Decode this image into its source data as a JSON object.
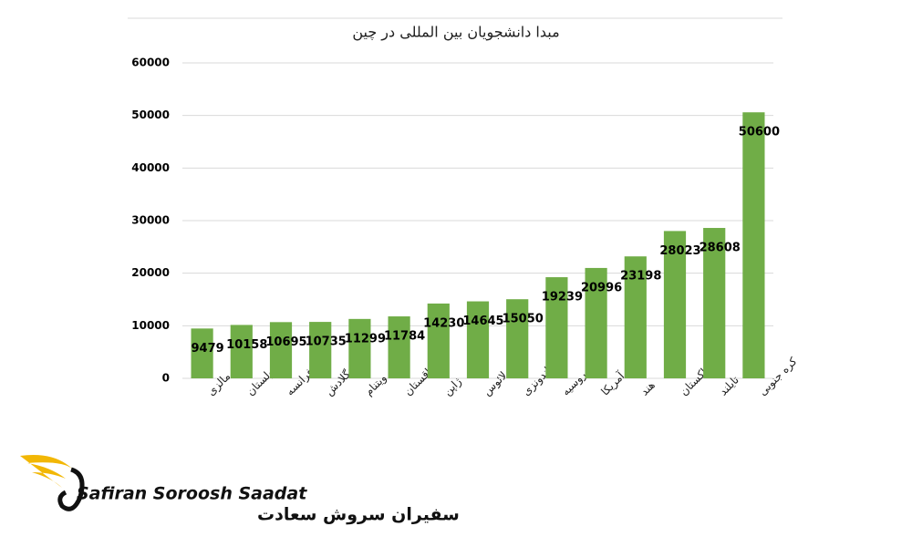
{
  "chart_data": {
    "type": "bar",
    "title": "مبدا دانشجویان بین المللی در چین",
    "categories": [
      "مالزی",
      "مغولستان",
      "فرانسه",
      "بنگلادش",
      "ویتنام",
      "قزاقستان",
      "ژاپن",
      "لائوس",
      "اندونزی",
      "روسیه",
      "آمریکا",
      "هند",
      "پاکستان",
      "تایلند",
      "کره جنوبی"
    ],
    "values": [
      9479,
      10158,
      10695,
      10735,
      11299,
      11784,
      14230,
      14645,
      15050,
      19239,
      20996,
      23198,
      28023,
      28608,
      50600
    ],
    "color": "#70ad47",
    "ylim": [
      0,
      60000
    ],
    "yticks": [
      0,
      10000,
      20000,
      30000,
      40000,
      50000,
      60000
    ],
    "grid": true
  },
  "logo": {
    "name_en": "Safiran Soroosh Saadat",
    "name_fa": "سفیران سروش سعادت"
  }
}
